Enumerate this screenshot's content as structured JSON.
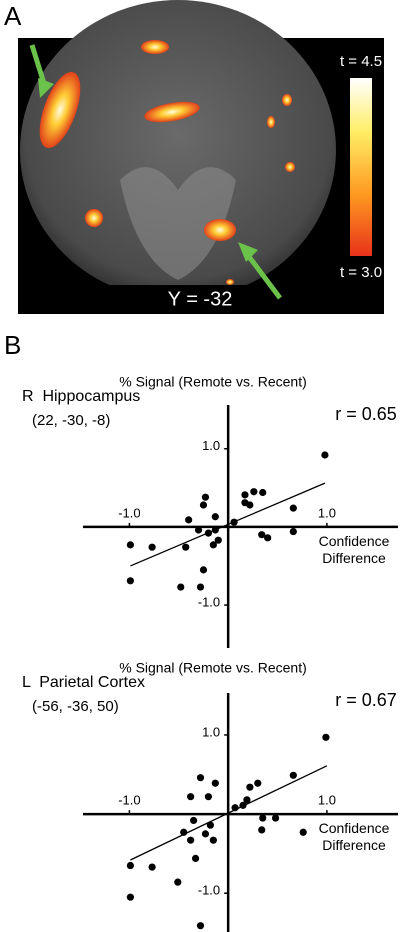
{
  "panel_a": {
    "label": "A",
    "slice_label": "Y = -32",
    "colorbar_max_label": "t = 4.5",
    "colorbar_min_label": "t = 3.0"
  },
  "panel_b": {
    "label": "B"
  },
  "chart_data": [
    {
      "type": "scatter",
      "title": "% Signal (Remote vs. Recent)",
      "region": "R  Hippocampus",
      "coordinates": "(22, -30, -8)",
      "annotation": "r = 0.65",
      "x_label": "Confidence Difference",
      "x": [
        0.98,
        -0.99,
        -0.77,
        -0.99,
        -0.23,
        -0.25,
        -0.4,
        -0.13,
        -0.3,
        -0.2,
        -0.13,
        -0.43,
        -0.15,
        -0.1,
        -0.48,
        -0.28,
        -0.25,
        0.06,
        0.17,
        0.17,
        0.26,
        0.22,
        0.35,
        0.34,
        0.4,
        0.66,
        0.66
      ],
      "values": [
        0.92,
        -0.23,
        -0.26,
        -0.69,
        0.38,
        0.28,
        0.09,
        0.13,
        -0.04,
        -0.08,
        -0.04,
        -0.26,
        -0.23,
        -0.17,
        -0.77,
        -0.77,
        -0.55,
        0.06,
        0.41,
        0.31,
        0.45,
        0.28,
        0.44,
        -0.1,
        -0.14,
        0.24,
        -0.06
      ],
      "fit": {
        "x": [
          -0.99,
          0.98
        ],
        "values": [
          -0.5,
          0.56
        ]
      },
      "color": "#000000",
      "xlim": [
        -1.47,
        1.72
      ],
      "ylim": [
        -1.55,
        1.56
      ],
      "xticks": [
        {
          "value": -1,
          "label": "-1.0"
        },
        {
          "value": 1,
          "label": "1.0"
        }
      ],
      "yticks": [
        {
          "value": 1,
          "label": "1.0"
        },
        {
          "value": -1,
          "label": "-1.0"
        }
      ]
    },
    {
      "type": "scatter",
      "title": "% Signal (Remote vs. Recent)",
      "region": "L  Parietal Cortex",
      "coordinates": "(-56, -36, 50)",
      "annotation": "r = 0.67",
      "x_label": "Confidence Difference",
      "x": [
        0.99,
        -0.99,
        -0.99,
        -0.77,
        -0.51,
        -0.28,
        -0.28,
        -0.38,
        -0.2,
        -0.13,
        -0.35,
        -0.18,
        -0.45,
        -0.23,
        -0.38,
        -0.15,
        -0.33,
        0.07,
        0.15,
        0.19,
        0.22,
        0.3,
        0.35,
        0.34,
        0.48,
        0.66,
        0.76
      ],
      "values": [
        0.97,
        -0.65,
        -1.05,
        -0.67,
        -0.86,
        -1.41,
        0.46,
        0.22,
        0.22,
        0.39,
        -0.08,
        -0.14,
        -0.23,
        -0.25,
        -0.33,
        -0.33,
        -0.56,
        0.08,
        0.11,
        0.18,
        0.34,
        0.39,
        -0.05,
        -0.2,
        -0.05,
        0.49,
        -0.23
      ],
      "fit": {
        "x": [
          -0.99,
          1
        ],
        "values": [
          -0.58,
          0.61
        ]
      },
      "color": "#000000",
      "xlim": [
        -1.47,
        1.72
      ],
      "ylim": [
        -1.49,
        1.53
      ],
      "xticks": [
        {
          "value": -1,
          "label": "-1.0"
        },
        {
          "value": 1,
          "label": "1.0"
        }
      ],
      "yticks": [
        {
          "value": 1,
          "label": "1.0"
        },
        {
          "value": -1,
          "label": "-1.0"
        }
      ]
    }
  ]
}
